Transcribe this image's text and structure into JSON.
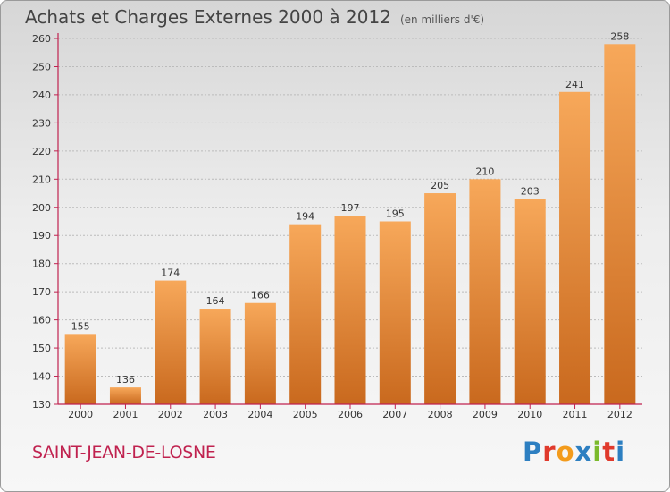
{
  "header": {
    "title": "Achats et Charges Externes 2000 à 2012",
    "unit": "(en milliers d'€)"
  },
  "footer": {
    "commune": "SAINT-JEAN-DE-LOSNE",
    "logo": "Proxiti",
    "logo_colors": [
      "#2d7fc1",
      "#e03a2c",
      "#f39b1c",
      "#2d7fc1",
      "#7cba2c",
      "#e03a2c",
      "#2d7fc1"
    ]
  },
  "colors": {
    "bar_top": "#f7a85a",
    "bar_bottom": "#c9691e",
    "axis": "#c0224f",
    "grid": "#bbbbbb"
  },
  "chart_data": {
    "type": "bar",
    "title": "Achats et Charges Externes 2000 à 2012",
    "subtitle": "(en milliers d'€)",
    "xlabel": "",
    "ylabel": "",
    "categories": [
      "2000",
      "2001",
      "2002",
      "2003",
      "2004",
      "2005",
      "2006",
      "2007",
      "2008",
      "2009",
      "2010",
      "2011",
      "2012"
    ],
    "values": [
      155,
      136,
      174,
      164,
      166,
      194,
      197,
      195,
      205,
      210,
      203,
      241,
      258
    ],
    "ylim": [
      130,
      260
    ],
    "yticks": [
      130,
      140,
      150,
      160,
      170,
      180,
      190,
      200,
      210,
      220,
      230,
      240,
      250,
      260
    ],
    "grid": true
  }
}
